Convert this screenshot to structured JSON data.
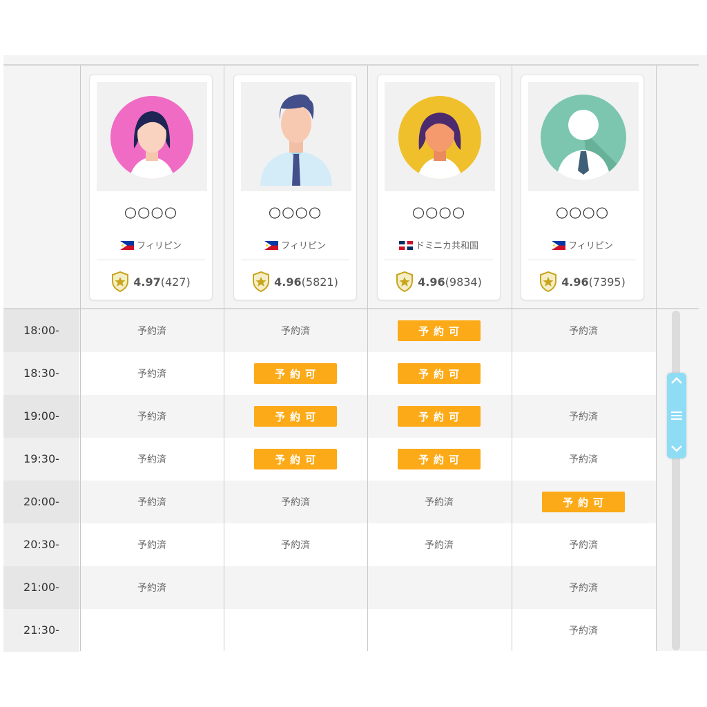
{
  "tutors": [
    {
      "name": "○○○○",
      "country": "フィリピン",
      "flag": "ph",
      "score": "4.97",
      "reviews": "(427)",
      "avatar": "woman-pink"
    },
    {
      "name": "○○○○",
      "country": "フィリピン",
      "flag": "ph",
      "score": "4.96",
      "reviews": "(5821)",
      "avatar": "man-business"
    },
    {
      "name": "○○○○",
      "country": "ドミニカ共和国",
      "flag": "do",
      "score": "4.96",
      "reviews": "(9834)",
      "avatar": "woman-yellow"
    },
    {
      "name": "○○○○",
      "country": "フィリピン",
      "flag": "ph",
      "score": "4.96",
      "reviews": "(7395)",
      "avatar": "person-teal"
    }
  ],
  "labels": {
    "booked": "予約済",
    "available": "予約可"
  },
  "schedule": [
    {
      "time": "18:00-",
      "slots": [
        "booked",
        "booked",
        "available",
        "booked"
      ]
    },
    {
      "time": "18:30-",
      "slots": [
        "booked",
        "available",
        "available",
        ""
      ]
    },
    {
      "time": "19:00-",
      "slots": [
        "booked",
        "available",
        "available",
        "booked"
      ]
    },
    {
      "time": "19:30-",
      "slots": [
        "booked",
        "available",
        "available",
        "booked"
      ]
    },
    {
      "time": "20:00-",
      "slots": [
        "booked",
        "booked",
        "booked",
        "available"
      ]
    },
    {
      "time": "20:30-",
      "slots": [
        "booked",
        "booked",
        "booked",
        "booked"
      ]
    },
    {
      "time": "21:00-",
      "slots": [
        "booked",
        "",
        "",
        "booked"
      ]
    },
    {
      "time": "21:30-",
      "slots": [
        "",
        "",
        "",
        "booked"
      ]
    }
  ],
  "colors": {
    "accent": "#fcaa18",
    "scroll_thumb": "#8fdcf5"
  },
  "icons": {
    "rating": "shield-star-icon",
    "scroll_up": "chevron-up-icon",
    "scroll_grip": "grip-lines-icon",
    "scroll_down": "chevron-down-icon"
  }
}
